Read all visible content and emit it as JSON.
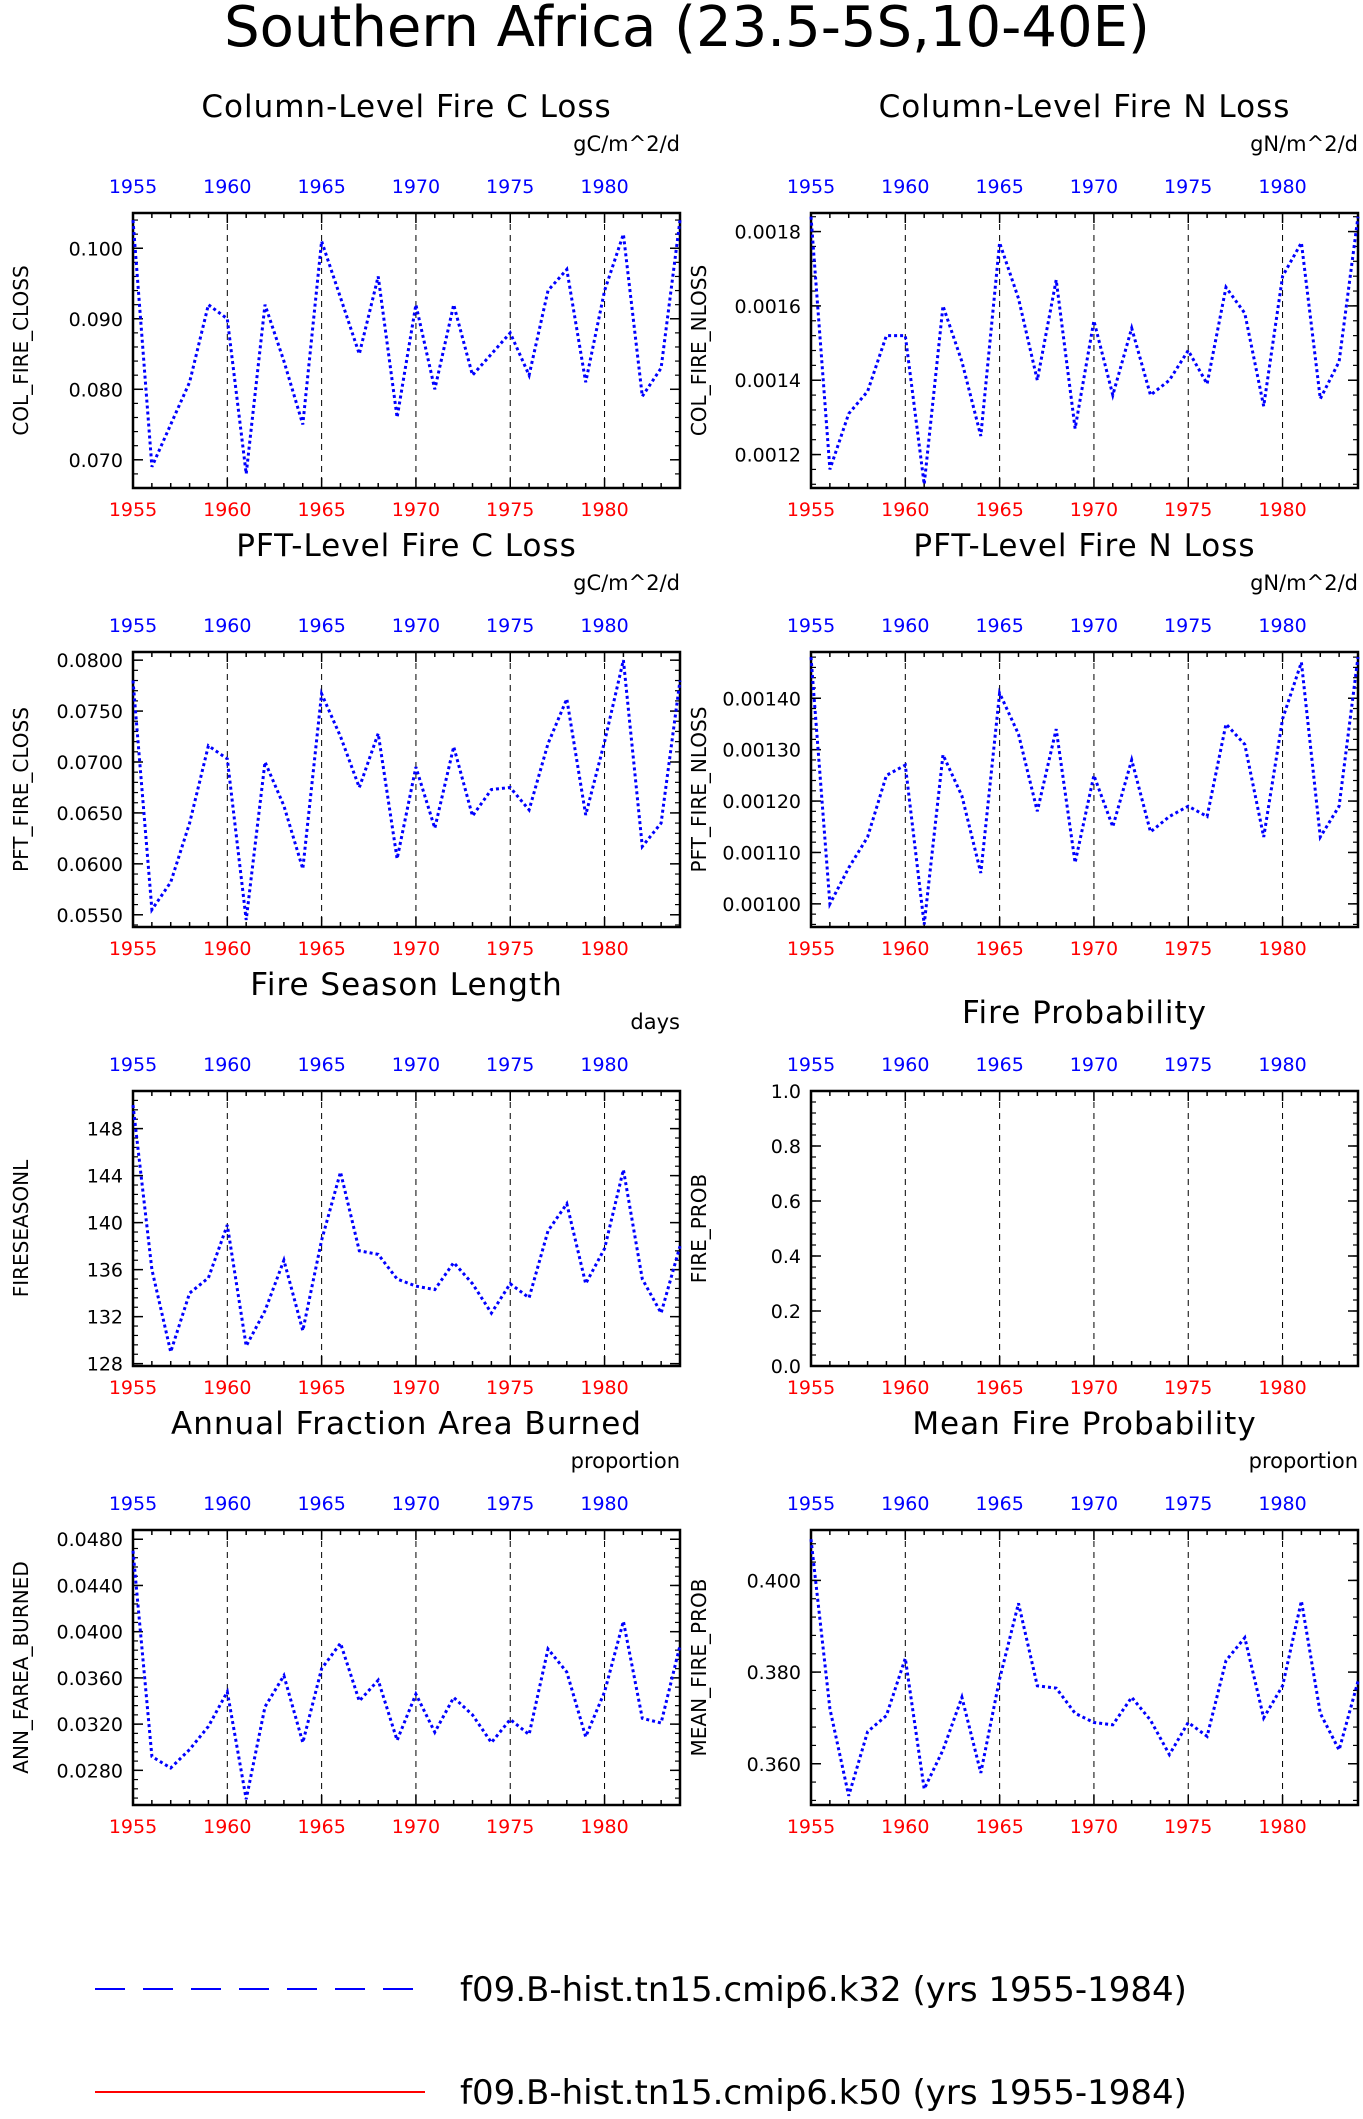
{
  "figure_title": "Southern Africa (23.5-5S,10-40E)",
  "colors": {
    "line": "#0000ff",
    "top_axis": "#0000ff",
    "bottom_axis": "#ff0000",
    "legend_line2": "#ff0000"
  },
  "legend": [
    {
      "label": "f09.B-hist.tn15.cmip6.k32 (yrs 1955-1984)",
      "style": "dashed",
      "color": "#0000ff"
    },
    {
      "label": "f09.B-hist.tn15.cmip6.k50 (yrs 1955-1984)",
      "style": "solid",
      "color": "#ff0000"
    }
  ],
  "chart_data": [
    {
      "type": "line",
      "title": "Column-Level Fire C Loss",
      "units": "gC/m^2/d",
      "ylabel": "COL_FIRE_CLOSS",
      "xlim": [
        1955,
        1984
      ],
      "ylim": [
        0.066,
        0.105
      ],
      "yticks": [
        0.07,
        0.08,
        0.09,
        0.1
      ],
      "ytick_labels": [
        "0.070",
        "0.080",
        "0.090",
        "0.100"
      ],
      "minor_step": 0.002,
      "xticks": [
        1955,
        1960,
        1965,
        1970,
        1975,
        1980
      ],
      "x": [
        1955,
        1956,
        1957,
        1958,
        1959,
        1960,
        1961,
        1962,
        1963,
        1964,
        1965,
        1966,
        1967,
        1968,
        1969,
        1970,
        1971,
        1972,
        1973,
        1974,
        1975,
        1976,
        1977,
        1978,
        1979,
        1980,
        1981,
        1982,
        1983,
        1984
      ],
      "series": [
        {
          "values": [
            0.104,
            0.069,
            0.075,
            0.081,
            0.092,
            0.09,
            0.068,
            0.092,
            0.084,
            0.075,
            0.101,
            0.093,
            0.085,
            0.096,
            0.076,
            0.092,
            0.08,
            0.092,
            0.082,
            0.085,
            0.088,
            0.082,
            0.094,
            0.097,
            0.081,
            0.094,
            0.102,
            0.079,
            0.083,
            0.104
          ]
        }
      ]
    },
    {
      "type": "line",
      "title": "Column-Level Fire N Loss",
      "units": "gN/m^2/d",
      "ylabel": "COL_FIRE_NLOSS",
      "xlim": [
        1955,
        1984
      ],
      "ylim": [
        0.00111,
        0.00185
      ],
      "yticks": [
        0.0012,
        0.0014,
        0.0016,
        0.0018
      ],
      "ytick_labels": [
        "0.0012",
        "0.0014",
        "0.0016",
        "0.0018"
      ],
      "minor_step": 4e-05,
      "xticks": [
        1955,
        1960,
        1965,
        1970,
        1975,
        1980
      ],
      "x": [
        1955,
        1956,
        1957,
        1958,
        1959,
        1960,
        1961,
        1962,
        1963,
        1964,
        1965,
        1966,
        1967,
        1968,
        1969,
        1970,
        1971,
        1972,
        1973,
        1974,
        1975,
        1976,
        1977,
        1978,
        1979,
        1980,
        1981,
        1982,
        1983,
        1984
      ],
      "series": [
        {
          "values": [
            0.00184,
            0.00116,
            0.00131,
            0.00137,
            0.00152,
            0.00152,
            0.00112,
            0.0016,
            0.00145,
            0.00125,
            0.00177,
            0.00162,
            0.0014,
            0.00167,
            0.00127,
            0.00156,
            0.00136,
            0.00154,
            0.00136,
            0.0014,
            0.00148,
            0.00139,
            0.00165,
            0.00158,
            0.00133,
            0.00168,
            0.00177,
            0.00135,
            0.00145,
            0.00184
          ]
        }
      ]
    },
    {
      "type": "line",
      "title": "PFT-Level Fire C Loss",
      "units": "gC/m^2/d",
      "ylabel": "PFT_FIRE_CLOSS",
      "xlim": [
        1955,
        1984
      ],
      "ylim": [
        0.0538,
        0.0808
      ],
      "yticks": [
        0.055,
        0.06,
        0.065,
        0.07,
        0.075,
        0.08
      ],
      "ytick_labels": [
        "0.0550",
        "0.0600",
        "0.0650",
        "0.0700",
        "0.0750",
        "0.0800"
      ],
      "minor_step": 0.001,
      "xticks": [
        1955,
        1960,
        1965,
        1970,
        1975,
        1980
      ],
      "x": [
        1955,
        1956,
        1957,
        1958,
        1959,
        1960,
        1961,
        1962,
        1963,
        1964,
        1965,
        1966,
        1967,
        1968,
        1969,
        1970,
        1971,
        1972,
        1973,
        1974,
        1975,
        1976,
        1977,
        1978,
        1979,
        1980,
        1981,
        1982,
        1983,
        1984
      ],
      "series": [
        {
          "values": [
            0.078,
            0.0555,
            0.0582,
            0.064,
            0.0716,
            0.0703,
            0.0545,
            0.07,
            0.0657,
            0.0595,
            0.0767,
            0.0725,
            0.0675,
            0.0728,
            0.0605,
            0.0695,
            0.0635,
            0.0715,
            0.0647,
            0.0673,
            0.0675,
            0.0653,
            0.0718,
            0.0762,
            0.0648,
            0.072,
            0.08,
            0.0617,
            0.064,
            0.078
          ]
        }
      ]
    },
    {
      "type": "line",
      "title": "PFT-Level Fire N Loss",
      "units": "gN/m^2/d",
      "ylabel": "PFT_FIRE_NLOSS",
      "xlim": [
        1955,
        1984
      ],
      "ylim": [
        0.000955,
        0.00149
      ],
      "yticks": [
        0.001,
        0.0011,
        0.0012,
        0.0013,
        0.0014
      ],
      "ytick_labels": [
        "0.00100",
        "0.00110",
        "0.00120",
        "0.00130",
        "0.00140"
      ],
      "minor_step": 2e-05,
      "xticks": [
        1955,
        1960,
        1965,
        1970,
        1975,
        1980
      ],
      "x": [
        1955,
        1956,
        1957,
        1958,
        1959,
        1960,
        1961,
        1962,
        1963,
        1964,
        1965,
        1966,
        1967,
        1968,
        1969,
        1970,
        1971,
        1972,
        1973,
        1974,
        1975,
        1976,
        1977,
        1978,
        1979,
        1980,
        1981,
        1982,
        1983,
        1984
      ],
      "series": [
        {
          "values": [
            0.00148,
            0.001,
            0.00107,
            0.00113,
            0.00125,
            0.00127,
            0.00096,
            0.00129,
            0.00121,
            0.00106,
            0.00141,
            0.00133,
            0.00118,
            0.00134,
            0.00108,
            0.00125,
            0.00115,
            0.00128,
            0.00114,
            0.00117,
            0.00119,
            0.00117,
            0.00135,
            0.00131,
            0.00113,
            0.00136,
            0.00147,
            0.00113,
            0.00119,
            0.00148
          ]
        }
      ]
    },
    {
      "type": "line",
      "title": "Fire Season Length",
      "units": "days",
      "ylabel": "FIRESEASONL",
      "xlim": [
        1955,
        1984
      ],
      "ylim": [
        127.8,
        151.2
      ],
      "yticks": [
        128,
        132,
        136,
        140,
        144,
        148
      ],
      "ytick_labels": [
        "128",
        "132",
        "136",
        "140",
        "144",
        "148"
      ],
      "minor_step": 0.8,
      "xticks": [
        1955,
        1960,
        1965,
        1970,
        1975,
        1980
      ],
      "x": [
        1955,
        1956,
        1957,
        1958,
        1959,
        1960,
        1961,
        1962,
        1963,
        1964,
        1965,
        1966,
        1967,
        1968,
        1969,
        1970,
        1971,
        1972,
        1973,
        1974,
        1975,
        1976,
        1977,
        1978,
        1979,
        1980,
        1981,
        1982,
        1983,
        1984
      ],
      "series": [
        {
          "values": [
            150.0,
            136.0,
            129.0,
            134.0,
            135.3,
            139.8,
            129.5,
            132.5,
            136.8,
            130.8,
            138.5,
            144.3,
            137.6,
            137.3,
            135.2,
            134.6,
            134.3,
            136.6,
            134.8,
            132.3,
            134.8,
            133.6,
            139.3,
            141.6,
            134.8,
            137.8,
            144.5,
            135.2,
            132.3,
            138.0
          ]
        }
      ]
    },
    {
      "type": "line",
      "title": "Fire Probability",
      "units": "",
      "ylabel": "FIRE_PROB",
      "xlim": [
        1955,
        1984
      ],
      "ylim": [
        0.0,
        1.0
      ],
      "yticks": [
        0.0,
        0.2,
        0.4,
        0.6,
        0.8,
        1.0
      ],
      "ytick_labels": [
        "0.0",
        "0.2",
        "0.4",
        "0.6",
        "0.8",
        "1.0"
      ],
      "minor_step": 0.04,
      "xticks": [
        1955,
        1960,
        1965,
        1970,
        1975,
        1980
      ],
      "x": [],
      "series": []
    },
    {
      "type": "line",
      "title": "Annual Fraction Area Burned",
      "units": "proportion",
      "ylabel": "ANN_FAREA_BURNED",
      "xlim": [
        1955,
        1984
      ],
      "ylim": [
        0.025,
        0.0488
      ],
      "yticks": [
        0.028,
        0.032,
        0.036,
        0.04,
        0.044,
        0.048
      ],
      "ytick_labels": [
        "0.0280",
        "0.0320",
        "0.0360",
        "0.0400",
        "0.0440",
        "0.0480"
      ],
      "minor_step": 0.0008,
      "xticks": [
        1955,
        1960,
        1965,
        1970,
        1975,
        1980
      ],
      "x": [
        1955,
        1956,
        1957,
        1958,
        1959,
        1960,
        1961,
        1962,
        1963,
        1964,
        1965,
        1966,
        1967,
        1968,
        1969,
        1970,
        1971,
        1972,
        1973,
        1974,
        1975,
        1976,
        1977,
        1978,
        1979,
        1980,
        1981,
        1982,
        1983,
        1984
      ],
      "series": [
        {
          "values": [
            0.047,
            0.0292,
            0.0282,
            0.0298,
            0.0318,
            0.0348,
            0.0255,
            0.0335,
            0.0362,
            0.0304,
            0.0368,
            0.039,
            0.034,
            0.0358,
            0.0306,
            0.0346,
            0.0313,
            0.0343,
            0.0328,
            0.0304,
            0.0324,
            0.0311,
            0.0385,
            0.0365,
            0.0309,
            0.0348,
            0.0409,
            0.0325,
            0.0321,
            0.0388
          ]
        }
      ]
    },
    {
      "type": "line",
      "title": "Mean Fire Probability",
      "units": "proportion",
      "ylabel": "MEAN_FIRE_PROB",
      "xlim": [
        1955,
        1984
      ],
      "ylim": [
        0.351,
        0.411
      ],
      "yticks": [
        0.36,
        0.38,
        0.4
      ],
      "ytick_labels": [
        "0.360",
        "0.380",
        "0.400"
      ],
      "minor_step": 0.004,
      "xticks": [
        1955,
        1960,
        1965,
        1970,
        1975,
        1980
      ],
      "x": [
        1955,
        1956,
        1957,
        1958,
        1959,
        1960,
        1961,
        1962,
        1963,
        1964,
        1965,
        1966,
        1967,
        1968,
        1969,
        1970,
        1971,
        1972,
        1973,
        1974,
        1975,
        1976,
        1977,
        1978,
        1979,
        1980,
        1981,
        1982,
        1983,
        1984
      ],
      "series": [
        {
          "values": [
            0.409,
            0.372,
            0.353,
            0.367,
            0.3705,
            0.383,
            0.3545,
            0.363,
            0.3745,
            0.358,
            0.3785,
            0.395,
            0.377,
            0.3765,
            0.371,
            0.369,
            0.3685,
            0.3745,
            0.3695,
            0.362,
            0.369,
            0.366,
            0.3825,
            0.3875,
            0.37,
            0.377,
            0.3955,
            0.371,
            0.363,
            0.378
          ]
        }
      ]
    }
  ]
}
